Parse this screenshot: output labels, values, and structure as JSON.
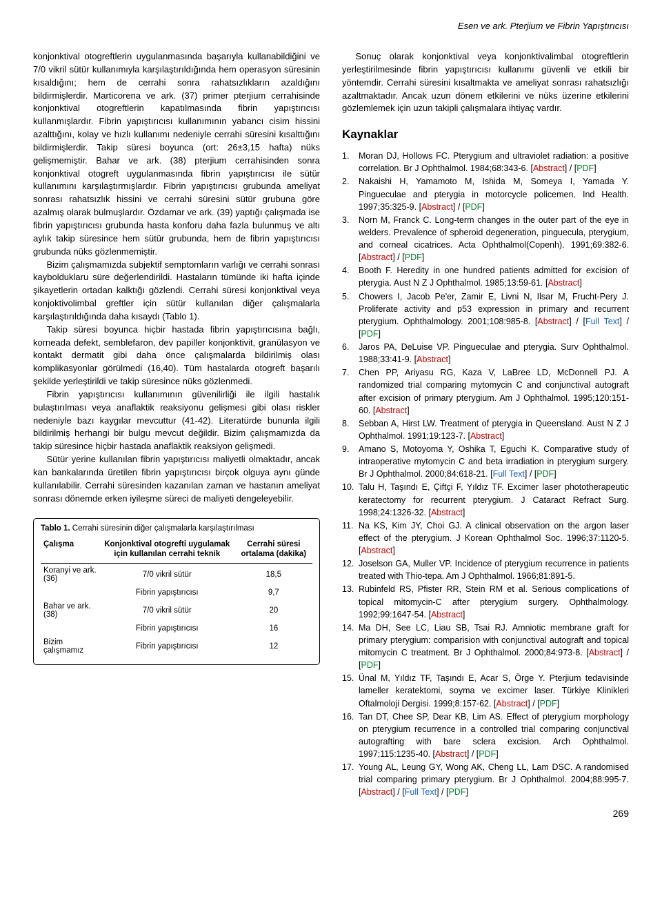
{
  "header": "Esen ve ark. Pterjium ve Fibrin Yapıştırıcısı",
  "left": {
    "p1": "konjonktival otogreftlerin uygulanmasında başarıyla kullanabildiğini ve 7/0 vikril sütür kullanımıyla karşılaştırıldığında hem operasyon süresinin kısaldığını; hem de cerrahi sonra rahatsızlıkların azaldığını bildirmişlerdir. Marticorena ve ark. (37) primer pterjium cerrahisinde konjonktival otogreftlerin kapatılmasında fibrin yapıştırıcısı kullanmışlardır. Fibrin yapıştırıcısı kullanımının yabancı cisim hissini azalttığını, kolay ve hızlı kullanımı nedeniyle cerrahi süresini kısalttığını bildirmişlerdir. Takip süresi boyunca (ort: 26±3,15 hafta) nüks gelişmemiştir. Bahar ve ark. (38) pterjium cerrahisinden sonra konjonktival otogreft uygulanmasında fibrin yapıştırıcısı ile sütür kullanımını karşılaştırmışlardır. Fibrin yapıştırıcısı grubunda ameliyat sonrası rahatsızlık hissini ve cerrahi süresini sütür grubuna göre azalmış olarak bulmuşlardır. Özdamar ve ark. (39) yaptığı çalışmada ise fibrin yapıştırıcısı grubunda hasta konforu daha fazla bulunmuş ve altı aylık takip süresince hem sütür grubunda, hem de fibrin yapıştırıcısı grubunda nüks gözlenmemiştir.",
    "p2": "Bizim çalışmamızda subjektif semptomların varlığı ve cerrahi sonrası kaybolduklaru süre değerlendirildi. Hastaların tümünde iki hafta içinde şikayetlerin ortadan kalktığı gözlendi. Cerrahi süresi konjonktival veya konjoktivolimbal greftler için sütür kullanılan diğer çalışmalarla karşılaştırıldığında daha kısaydı (Tablo 1).",
    "p3": "Takip süresi boyunca hiçbir hastada fibrin yapıştırıcısına bağlı, korneada defekt, semblefaron, dev papiller konjonktivit, granülasyon ve kontakt dermatit gibi daha önce çalışmalarda bildirilmiş olası komplikasyonlar görülmedi (16,40). Tüm hastalarda otogreft başarılı şekilde yerleştirildi ve takip süresince nüks gözlenmedi.",
    "p4": "Fibrin yapıştırıcısı kullanımının güvenilirliği ile ilgili hastalık bulaştırılması veya anaflaktik reaksiyonu gelişmesi gibi olası riskler nedeniyle bazı kaygılar mevcuttur (41-42). Literatürde bununla ilgili bildirilmiş herhangi bir bulgu mevcut değildir. Bizim çalışmamızda da takip süresince hiçbir hastada anaflaktik reaksiyon gelişmedi.",
    "p5": "Sütür yerine kullanılan fibrin yapıştırıcısı maliyetli olmaktadır, ancak kan bankalarında üretilen fibrin yapıştırıcısı birçok olguya aynı günde kullanılabilir. Cerrahi süresinden kazanılan zaman ve hastanın ameliyat sonrası dönemde erken iyileşme süreci de maliyeti dengeleyebilir."
  },
  "right": {
    "p1": "Sonuç olarak konjonktival veya konjonktivalimbal otogreftlerin yerleştirilmesinde fibrin yapıştırıcısı kullanımı güvenli ve etkili bir yöntemdir. Cerrahi süresini kısaltmakta ve ameliyat sonrası rahatsızlığı azaltmaktadır. Ancak uzun dönem etkilerini ve nüks üzerine etkilerini gözlemlemek için uzun takipli çalışmalara ihtiyaç vardır.",
    "kaynaklar_title": "Kaynaklar"
  },
  "refs": [
    {
      "text": "Moran DJ, Hollows FC. Pterygium and ultraviolet radiation: a positive correlation. Br J Ophthalmol. 1984;68:343-6.",
      "links": [
        "Abstract",
        "PDF"
      ]
    },
    {
      "text": "Nakaishi H, Yamamoto M, Ishida M, Someya I, Yamada Y. Pingueculae and pterygia in motorcycle policemen. Ind Health. 1997;35:325-9.",
      "links": [
        "Abstract",
        "PDF"
      ]
    },
    {
      "text": "Norn M, Franck C. Long-term changes in the outer part of the eye in welders. Prevalence of spheroid degeneration, pinguecula, pterygium, and corneal cicatrices. Acta Ophthalmol(Copenh). 1991;69:382-6.",
      "links": [
        "Abstract",
        "PDF"
      ]
    },
    {
      "text": "Booth F. Heredity in one hundred patients admitted for excision of pterygia. Aust N Z J Ophthalmol. 1985;13:59-61.",
      "links": [
        "Abstract"
      ]
    },
    {
      "text": "Chowers I, Jacob Pe'er,  Zamir E, Livni N, Ilsar M, Frucht-Pery J. Proliferate activity and p53 expression in primary and recurrent pterygium. Ophthalmology. 2001;108:985-8.",
      "links": [
        "Abstract",
        "Full Text",
        "PDF"
      ]
    },
    {
      "text": "Jaros PA, DeLuise VP. Pingueculae and pterygia. Surv Ophthalmol. 1988;33:41-9.",
      "links": [
        "Abstract"
      ]
    },
    {
      "text": "Chen PP, Ariyasu RG, Kaza V, LaBree LD, McDonnell PJ. A randomized trial comparing mytomycin C and conjunctival autograft after excision of primary pterygium. Am J Ophthalmol. 1995;120:151-60.",
      "links": [
        "Abstract"
      ]
    },
    {
      "text": "Sebban A, Hirst LW. Treatment of pterygia in Queensland. Aust N Z J Ophthalmol. 1991;19:123-7.",
      "links": [
        "Abstract"
      ]
    },
    {
      "text": "Amano S, Motoyoma Y, Oshika T, Eguchi K. Comparative study of intraoperative mytomycin C and beta irradiation in pterygium surgery. Br J Ophthalmol. 2000;84:618-21.",
      "links": [
        "Full Text",
        "PDF"
      ]
    },
    {
      "text": "Talu H, Taşındı E, Çiftçi F, Yıldız TF. Excimer laser phototherapeutic keratectomy for recurrent pterygium. J Cataract Refract Surg. 1998;24:1326-32.",
      "links": [
        "Abstract"
      ]
    },
    {
      "text": "Na KS, Kim JY, Choi GJ. A clinical observation on the argon laser effect of the pterygium. J Korean Ophthalmol Soc. 1996;37:1120-5.",
      "links": [
        "Abstract"
      ]
    },
    {
      "text": "Joselson GA, Muller VP. Incidence of pterygium recurrence in patients treated with Thio-tepa. Am J Ophthalmol. 1966;81:891-5.",
      "links": []
    },
    {
      "text": "Rubinfeld RS, Pfister RR, Stein RM et al. Serious complications of topical mitomycin-C after pterygium surgery. Ophthalmology. 1992;99:1647-54.",
      "links": [
        "Abstract"
      ]
    },
    {
      "text": "Ma DH, See LC, Liau SB, Tsai RJ. Amniotic membrane graft for primary pterygium: comparision with conjunctival autograft and topical mitomycin C treatment. Br J Ophthalmol. 2000;84:973-8.",
      "links": [
        "Abstract",
        "PDF"
      ]
    },
    {
      "text": "Ünal M, Yıldız TF, Taşındı E, Acar S, Örge Y. Pterjium tedavisinde lameller keratektomi, soyma ve excimer laser. Türkiye Klinikleri Oftalmoloji Dergisi. 1999;8:157-62.",
      "links": [
        "Abstract",
        "PDF"
      ]
    },
    {
      "text": "Tan DT, Chee SP, Dear KB, Lim AS. Effect of pterygium morphology on pterygium recurrence in a controlled trial comparing conjunctival autografting with bare sclera excision. Arch Ophthalmol. 1997;115:1235-40.",
      "links": [
        "Abstract",
        "PDF"
      ]
    },
    {
      "text": "Young AL, Leung GY, Wong AK, Cheng LL, Lam DSC. A randomised trial comparing primary pterygium. Br J Ophthalmol. 2004;88:995-7.",
      "links": [
        "Abstract",
        "Full Text",
        "PDF"
      ]
    }
  ],
  "table": {
    "caption_bold": "Tablo 1.",
    "caption_rest": " Cerrahi süresinin diğer çalışmalarla karşılaştırılması",
    "columns": [
      "Çalışma",
      "Konjonktival otogrefti uygulamak için kullanılan cerrahi teknik",
      "Cerrahi süresi ortalama (dakika)"
    ],
    "rows": [
      [
        "Koranyi ve ark. (36)",
        "7/0 vikril sütür",
        "18,5"
      ],
      [
        "",
        "Fibrin yapıştırıcısı",
        "9,7"
      ],
      [
        "Bahar ve ark. (38)",
        "7/0 vikril sütür",
        "20"
      ],
      [
        "",
        "Fibrin yapıştırıcısı",
        "16"
      ],
      [
        "Bizim çalışmamız",
        "Fibrin yapıştırıcısı",
        "12"
      ]
    ]
  },
  "link_label": {
    "Abstract": "Abstract",
    "Full Text": "Full Text",
    "PDF": "PDF"
  },
  "page_number": "269"
}
